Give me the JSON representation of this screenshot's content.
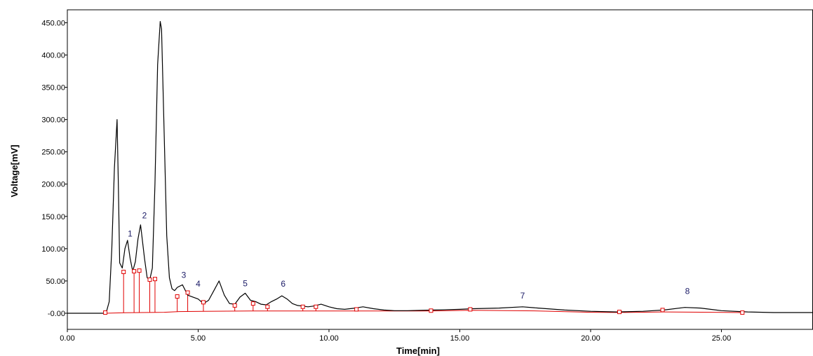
{
  "chart_data": {
    "type": "line",
    "title": "",
    "xlabel": "Time[min]",
    "ylabel": "Voltage[mV]",
    "xlim": [
      0,
      28.5
    ],
    "ylim": [
      -25,
      470
    ],
    "grid": false,
    "x_ticks": [
      {
        "value": 0,
        "label": "0.00"
      },
      {
        "value": 5,
        "label": "5.00"
      },
      {
        "value": 10,
        "label": "10.00"
      },
      {
        "value": 15,
        "label": "15.00"
      },
      {
        "value": 20,
        "label": "20.00"
      },
      {
        "value": 25,
        "label": "25.00"
      }
    ],
    "y_ticks": [
      {
        "value": 0,
        "label": "-0.00"
      },
      {
        "value": 50,
        "label": "50.00"
      },
      {
        "value": 100,
        "label": "100.00"
      },
      {
        "value": 150,
        "label": "150.00"
      },
      {
        "value": 200,
        "label": "200.00"
      },
      {
        "value": 250,
        "label": "250.00"
      },
      {
        "value": 300,
        "label": "300.00"
      },
      {
        "value": 350,
        "label": "350.00"
      },
      {
        "value": 400,
        "label": "400.00"
      },
      {
        "value": 450,
        "label": "450.00"
      }
    ],
    "series": [
      {
        "color": "#000000",
        "x": [
          0,
          1.4,
          1.5,
          1.6,
          1.7,
          1.8,
          1.9,
          1.95,
          2.0,
          2.1,
          2.2,
          2.3,
          2.4,
          2.5,
          2.6,
          2.7,
          2.8,
          2.95,
          3.05,
          3.15,
          3.25,
          3.35,
          3.45,
          3.55,
          3.6,
          3.7,
          3.8,
          3.9,
          4.0,
          4.1,
          4.2,
          4.4,
          4.6,
          4.8,
          5.0,
          5.2,
          5.4,
          5.6,
          5.8,
          6.0,
          6.2,
          6.4,
          6.6,
          6.8,
          7.0,
          7.2,
          7.4,
          7.6,
          7.8,
          8.0,
          8.2,
          8.4,
          8.6,
          8.8,
          9.0,
          9.2,
          9.4,
          9.7,
          10.0,
          10.3,
          10.6,
          11.0,
          11.3,
          11.7,
          12.1,
          12.5,
          13.0,
          14.0,
          15.0,
          15.5,
          16.5,
          17.4,
          18.0,
          19.0,
          20.0,
          21.0,
          22.0,
          22.8,
          23.6,
          24.2,
          25.0,
          26.0,
          27.0,
          28.5
        ],
        "values": [
          0,
          0,
          3,
          18,
          100,
          225,
          300,
          200,
          78,
          70,
          100,
          113,
          85,
          65,
          80,
          115,
          137,
          85,
          55,
          52,
          70,
          200,
          385,
          452,
          440,
          280,
          120,
          55,
          38,
          35,
          40,
          44,
          28,
          25,
          22,
          15,
          20,
          35,
          50,
          28,
          15,
          14,
          25,
          31,
          20,
          18,
          14,
          13,
          18,
          22,
          27,
          22,
          15,
          12,
          11,
          10,
          11,
          14,
          10,
          7,
          6,
          8,
          10,
          7,
          5,
          4,
          4,
          5,
          6,
          7,
          8,
          10,
          8,
          5,
          3,
          2,
          3,
          5,
          9,
          8,
          4,
          2,
          1,
          1
        ]
      },
      {
        "color": "#e00000",
        "x": [
          1.45,
          2.2,
          3.7,
          4.2,
          5.2,
          7.0,
          11.0,
          13.9,
          15.4,
          18.0,
          20.0,
          21.1,
          22.8,
          25.8
        ],
        "values": [
          0,
          0.8,
          1.5,
          2.5,
          3,
          3.5,
          3.5,
          3.5,
          4.5,
          3.5,
          1.5,
          1.2,
          2,
          1
        ]
      }
    ],
    "integration_markers": [
      {
        "x": 1.45,
        "y": 1
      },
      {
        "x": 2.15,
        "y": 64
      },
      {
        "x": 2.55,
        "y": 65
      },
      {
        "x": 2.75,
        "y": 66
      },
      {
        "x": 3.15,
        "y": 52
      },
      {
        "x": 3.35,
        "y": 53
      },
      {
        "x": 4.2,
        "y": 26
      },
      {
        "x": 4.6,
        "y": 32
      },
      {
        "x": 5.2,
        "y": 17
      },
      {
        "x": 6.4,
        "y": 12
      },
      {
        "x": 7.1,
        "y": 15
      },
      {
        "x": 7.65,
        "y": 10
      },
      {
        "x": 9.0,
        "y": 10
      },
      {
        "x": 9.5,
        "y": 10
      },
      {
        "x": 11.05,
        "y": 6
      },
      {
        "x": 13.9,
        "y": 4
      },
      {
        "x": 15.4,
        "y": 6
      },
      {
        "x": 21.1,
        "y": 2
      },
      {
        "x": 22.75,
        "y": 5
      },
      {
        "x": 25.8,
        "y": 1
      }
    ],
    "peak_labels": [
      {
        "label": "1",
        "x": 2.4,
        "y": 119
      },
      {
        "label": "2",
        "x": 2.95,
        "y": 147
      },
      {
        "label": "3",
        "x": 4.45,
        "y": 55
      },
      {
        "label": "4",
        "x": 5.0,
        "y": 41
      },
      {
        "label": "5",
        "x": 6.8,
        "y": 42
      },
      {
        "label": "6",
        "x": 8.25,
        "y": 41
      },
      {
        "label": "7",
        "x": 17.4,
        "y": 23
      },
      {
        "label": "8",
        "x": 23.7,
        "y": 30
      }
    ],
    "colors": {
      "trace": "#000000",
      "baseline": "#e00000",
      "labels": "#1a1a66"
    }
  }
}
